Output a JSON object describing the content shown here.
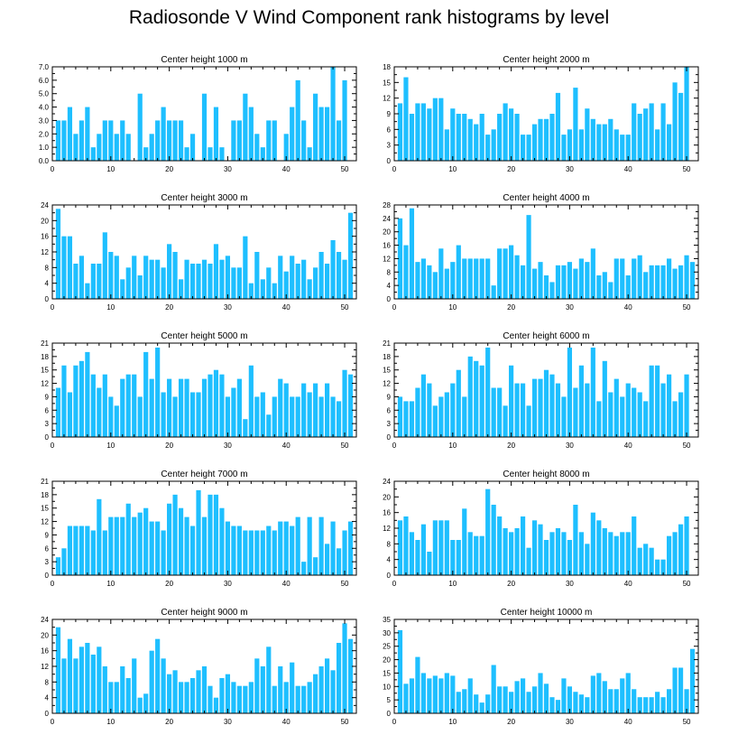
{
  "title": "Radiosonde V Wind Component rank histograms by level",
  "chart_data": [
    {
      "type": "bar",
      "title": "Center height 1000 m",
      "xlim": [
        0,
        52
      ],
      "ylim": [
        0,
        7
      ],
      "xticks": [
        "0",
        "10",
        "20",
        "30",
        "40",
        "50"
      ],
      "yticks": [
        "0.0",
        "1.0",
        "2.0",
        "3.0",
        "4.0",
        "5.0",
        "6.0",
        "7.0"
      ],
      "x": [
        1,
        2,
        3,
        4,
        5,
        6,
        7,
        8,
        9,
        10,
        11,
        12,
        13,
        14,
        15,
        16,
        17,
        18,
        19,
        20,
        21,
        22,
        23,
        24,
        25,
        26,
        27,
        28,
        29,
        30,
        31,
        32,
        33,
        34,
        35,
        36,
        37,
        38,
        39,
        40,
        41,
        42,
        43,
        44,
        45,
        46,
        47,
        48,
        49,
        50,
        51
      ],
      "values": [
        3,
        3,
        4,
        2,
        3,
        4,
        1,
        2,
        3,
        3,
        2,
        3,
        2,
        0,
        5,
        1,
        2,
        3,
        4,
        3,
        3,
        3,
        1,
        2,
        0,
        5,
        1,
        4,
        1,
        0,
        3,
        3,
        5,
        4,
        2,
        1,
        3,
        3,
        0,
        2,
        4,
        6,
        3,
        1,
        5,
        4,
        4,
        7,
        3,
        6,
        0
      ]
    },
    {
      "type": "bar",
      "title": "Center height 2000 m",
      "xlim": [
        0,
        52
      ],
      "ylim": [
        0,
        18
      ],
      "xticks": [
        "0",
        "10",
        "20",
        "30",
        "40",
        "50"
      ],
      "yticks": [
        "0",
        "3",
        "6",
        "9",
        "12",
        "15",
        "18"
      ],
      "x": [
        1,
        2,
        3,
        4,
        5,
        6,
        7,
        8,
        9,
        10,
        11,
        12,
        13,
        14,
        15,
        16,
        17,
        18,
        19,
        20,
        21,
        22,
        23,
        24,
        25,
        26,
        27,
        28,
        29,
        30,
        31,
        32,
        33,
        34,
        35,
        36,
        37,
        38,
        39,
        40,
        41,
        42,
        43,
        44,
        45,
        46,
        47,
        48,
        49,
        50,
        51
      ],
      "values": [
        11,
        16,
        9,
        11,
        11,
        10,
        12,
        12,
        6,
        10,
        9,
        9,
        8,
        7,
        9,
        5,
        6,
        9,
        11,
        10,
        9,
        5,
        5,
        7,
        8,
        8,
        9,
        13,
        5,
        6,
        14,
        6,
        10,
        8,
        7,
        7,
        8,
        6,
        5,
        5,
        11,
        9,
        10,
        11,
        6,
        11,
        7,
        15,
        13,
        18,
        0
      ]
    },
    {
      "type": "bar",
      "title": "Center height 3000 m",
      "xlim": [
        0,
        52
      ],
      "ylim": [
        0,
        24
      ],
      "xticks": [
        "0",
        "10",
        "20",
        "30",
        "40",
        "50"
      ],
      "yticks": [
        "0",
        "4",
        "8",
        "12",
        "16",
        "20",
        "24"
      ],
      "x": [
        1,
        2,
        3,
        4,
        5,
        6,
        7,
        8,
        9,
        10,
        11,
        12,
        13,
        14,
        15,
        16,
        17,
        18,
        19,
        20,
        21,
        22,
        23,
        24,
        25,
        26,
        27,
        28,
        29,
        30,
        31,
        32,
        33,
        34,
        35,
        36,
        37,
        38,
        39,
        40,
        41,
        42,
        43,
        44,
        45,
        46,
        47,
        48,
        49,
        50,
        51
      ],
      "values": [
        23,
        16,
        16,
        9,
        11,
        4,
        9,
        9,
        17,
        12,
        11,
        5,
        8,
        11,
        6,
        11,
        10,
        10,
        8,
        14,
        12,
        5,
        10,
        9,
        9,
        10,
        9,
        14,
        10,
        11,
        8,
        8,
        16,
        4,
        12,
        5,
        8,
        4,
        11,
        7,
        11,
        9,
        10,
        5,
        8,
        12,
        9,
        15,
        12,
        10,
        22
      ]
    },
    {
      "type": "bar",
      "title": "Center height 4000 m",
      "xlim": [
        0,
        52
      ],
      "ylim": [
        0,
        28
      ],
      "xticks": [
        "0",
        "10",
        "20",
        "30",
        "40",
        "50"
      ],
      "yticks": [
        "0",
        "4",
        "8",
        "12",
        "16",
        "20",
        "24",
        "28"
      ],
      "x": [
        1,
        2,
        3,
        4,
        5,
        6,
        7,
        8,
        9,
        10,
        11,
        12,
        13,
        14,
        15,
        16,
        17,
        18,
        19,
        20,
        21,
        22,
        23,
        24,
        25,
        26,
        27,
        28,
        29,
        30,
        31,
        32,
        33,
        34,
        35,
        36,
        37,
        38,
        39,
        40,
        41,
        42,
        43,
        44,
        45,
        46,
        47,
        48,
        49,
        50,
        51
      ],
      "values": [
        24,
        16,
        27,
        11,
        12,
        10,
        8,
        15,
        9,
        11,
        16,
        12,
        12,
        12,
        12,
        12,
        4,
        15,
        15,
        16,
        13,
        10,
        25,
        9,
        11,
        7,
        5,
        10,
        10,
        11,
        9,
        12,
        11,
        15,
        7,
        8,
        5,
        12,
        12,
        7,
        12,
        13,
        8,
        10,
        10,
        10,
        12,
        9,
        10,
        13,
        11
      ]
    },
    {
      "type": "bar",
      "title": "Center height 5000 m",
      "xlim": [
        0,
        52
      ],
      "ylim": [
        0,
        21
      ],
      "xticks": [
        "0",
        "10",
        "20",
        "30",
        "40",
        "50"
      ],
      "yticks": [
        "0",
        "3",
        "6",
        "9",
        "12",
        "15",
        "18",
        "21"
      ],
      "x": [
        1,
        2,
        3,
        4,
        5,
        6,
        7,
        8,
        9,
        10,
        11,
        12,
        13,
        14,
        15,
        16,
        17,
        18,
        19,
        20,
        21,
        22,
        23,
        24,
        25,
        26,
        27,
        28,
        29,
        30,
        31,
        32,
        33,
        34,
        35,
        36,
        37,
        38,
        39,
        40,
        41,
        42,
        43,
        44,
        45,
        46,
        47,
        48,
        49,
        50,
        51
      ],
      "values": [
        11,
        16,
        10,
        16,
        17,
        19,
        14,
        11,
        14,
        9,
        7,
        13,
        14,
        14,
        9,
        19,
        13,
        20,
        10,
        13,
        9,
        13,
        13,
        10,
        10,
        13,
        14,
        15,
        14,
        9,
        11,
        13,
        4,
        16,
        9,
        10,
        5,
        9,
        13,
        12,
        9,
        9,
        12,
        10,
        12,
        9,
        12,
        9,
        8,
        15,
        14
      ]
    },
    {
      "type": "bar",
      "title": "Center height 6000 m",
      "xlim": [
        0,
        52
      ],
      "ylim": [
        0,
        21
      ],
      "xticks": [
        "0",
        "10",
        "20",
        "30",
        "40",
        "50"
      ],
      "yticks": [
        "0",
        "3",
        "6",
        "9",
        "12",
        "15",
        "18",
        "21"
      ],
      "x": [
        1,
        2,
        3,
        4,
        5,
        6,
        7,
        8,
        9,
        10,
        11,
        12,
        13,
        14,
        15,
        16,
        17,
        18,
        19,
        20,
        21,
        22,
        23,
        24,
        25,
        26,
        27,
        28,
        29,
        30,
        31,
        32,
        33,
        34,
        35,
        36,
        37,
        38,
        39,
        40,
        41,
        42,
        43,
        44,
        45,
        46,
        47,
        48,
        49,
        50,
        51
      ],
      "values": [
        9,
        8,
        8,
        11,
        14,
        12,
        7,
        9,
        10,
        12,
        15,
        9,
        18,
        17,
        16,
        20,
        11,
        11,
        7,
        16,
        12,
        12,
        7,
        13,
        13,
        15,
        14,
        12,
        9,
        20,
        11,
        16,
        12,
        20,
        8,
        17,
        10,
        13,
        9,
        12,
        11,
        10,
        8,
        16,
        16,
        12,
        14,
        8,
        10,
        14,
        0
      ]
    },
    {
      "type": "bar",
      "title": "Center height 7000 m",
      "xlim": [
        0,
        52
      ],
      "ylim": [
        0,
        21
      ],
      "xticks": [
        "0",
        "10",
        "20",
        "30",
        "40",
        "50"
      ],
      "yticks": [
        "0",
        "3",
        "6",
        "9",
        "12",
        "15",
        "18",
        "21"
      ],
      "x": [
        1,
        2,
        3,
        4,
        5,
        6,
        7,
        8,
        9,
        10,
        11,
        12,
        13,
        14,
        15,
        16,
        17,
        18,
        19,
        20,
        21,
        22,
        23,
        24,
        25,
        26,
        27,
        28,
        29,
        30,
        31,
        32,
        33,
        34,
        35,
        36,
        37,
        38,
        39,
        40,
        41,
        42,
        43,
        44,
        45,
        46,
        47,
        48,
        49,
        50,
        51
      ],
      "values": [
        4,
        6,
        11,
        11,
        11,
        11,
        10,
        17,
        10,
        13,
        13,
        13,
        16,
        13,
        14,
        15,
        12,
        12,
        10,
        16,
        18,
        15,
        13,
        11,
        19,
        13,
        18,
        18,
        15,
        12,
        11,
        11,
        10,
        10,
        10,
        10,
        11,
        10,
        12,
        12,
        11,
        13,
        3,
        13,
        4,
        13,
        7,
        12,
        6,
        10,
        12
      ]
    },
    {
      "type": "bar",
      "title": "Center height 8000 m",
      "xlim": [
        0,
        52
      ],
      "ylim": [
        0,
        24
      ],
      "xticks": [
        "0",
        "10",
        "20",
        "30",
        "40",
        "50"
      ],
      "yticks": [
        "0",
        "4",
        "8",
        "12",
        "16",
        "20",
        "24"
      ],
      "x": [
        1,
        2,
        3,
        4,
        5,
        6,
        7,
        8,
        9,
        10,
        11,
        12,
        13,
        14,
        15,
        16,
        17,
        18,
        19,
        20,
        21,
        22,
        23,
        24,
        25,
        26,
        27,
        28,
        29,
        30,
        31,
        32,
        33,
        34,
        35,
        36,
        37,
        38,
        39,
        40,
        41,
        42,
        43,
        44,
        45,
        46,
        47,
        48,
        49,
        50,
        51
      ],
      "values": [
        14,
        15,
        11,
        9,
        13,
        6,
        14,
        14,
        14,
        9,
        9,
        17,
        11,
        10,
        10,
        22,
        18,
        15,
        12,
        11,
        12,
        15,
        7,
        14,
        13,
        9,
        11,
        12,
        11,
        9,
        18,
        11,
        8,
        16,
        14,
        12,
        11,
        10,
        11,
        11,
        15,
        7,
        8,
        7,
        4,
        4,
        10,
        11,
        13,
        15,
        0
      ]
    },
    {
      "type": "bar",
      "title": "Center height 9000 m",
      "xlim": [
        0,
        52
      ],
      "ylim": [
        0,
        24
      ],
      "xticks": [
        "0",
        "10",
        "20",
        "30",
        "40",
        "50"
      ],
      "yticks": [
        "0",
        "4",
        "8",
        "12",
        "16",
        "20",
        "24"
      ],
      "x": [
        1,
        2,
        3,
        4,
        5,
        6,
        7,
        8,
        9,
        10,
        11,
        12,
        13,
        14,
        15,
        16,
        17,
        18,
        19,
        20,
        21,
        22,
        23,
        24,
        25,
        26,
        27,
        28,
        29,
        30,
        31,
        32,
        33,
        34,
        35,
        36,
        37,
        38,
        39,
        40,
        41,
        42,
        43,
        44,
        45,
        46,
        47,
        48,
        49,
        50,
        51
      ],
      "values": [
        22,
        14,
        19,
        14,
        17,
        18,
        15,
        17,
        12,
        8,
        8,
        12,
        9,
        14,
        4,
        5,
        16,
        19,
        14,
        10,
        11,
        8,
        8,
        9,
        11,
        12,
        7,
        4,
        9,
        10,
        8,
        7,
        7,
        8,
        14,
        12,
        17,
        7,
        12,
        8,
        13,
        7,
        7,
        8,
        10,
        12,
        14,
        11,
        18,
        23,
        19
      ]
    },
    {
      "type": "bar",
      "title": "Center height 10000 m",
      "xlim": [
        0,
        52
      ],
      "ylim": [
        0,
        35
      ],
      "xticks": [
        "0",
        "10",
        "20",
        "30",
        "40",
        "50"
      ],
      "yticks": [
        "0",
        "5",
        "10",
        "15",
        "20",
        "25",
        "30",
        "35"
      ],
      "x": [
        1,
        2,
        3,
        4,
        5,
        6,
        7,
        8,
        9,
        10,
        11,
        12,
        13,
        14,
        15,
        16,
        17,
        18,
        19,
        20,
        21,
        22,
        23,
        24,
        25,
        26,
        27,
        28,
        29,
        30,
        31,
        32,
        33,
        34,
        35,
        36,
        37,
        38,
        39,
        40,
        41,
        42,
        43,
        44,
        45,
        46,
        47,
        48,
        49,
        50,
        51
      ],
      "values": [
        31,
        11,
        13,
        21,
        15,
        13,
        14,
        13,
        15,
        14,
        8,
        9,
        13,
        7,
        4,
        7,
        18,
        10,
        10,
        8,
        12,
        13,
        8,
        10,
        15,
        11,
        6,
        5,
        13,
        10,
        8,
        7,
        6,
        14,
        15,
        12,
        9,
        9,
        13,
        15,
        9,
        6,
        6,
        6,
        8,
        6,
        9,
        17,
        17,
        9,
        24
      ]
    }
  ]
}
